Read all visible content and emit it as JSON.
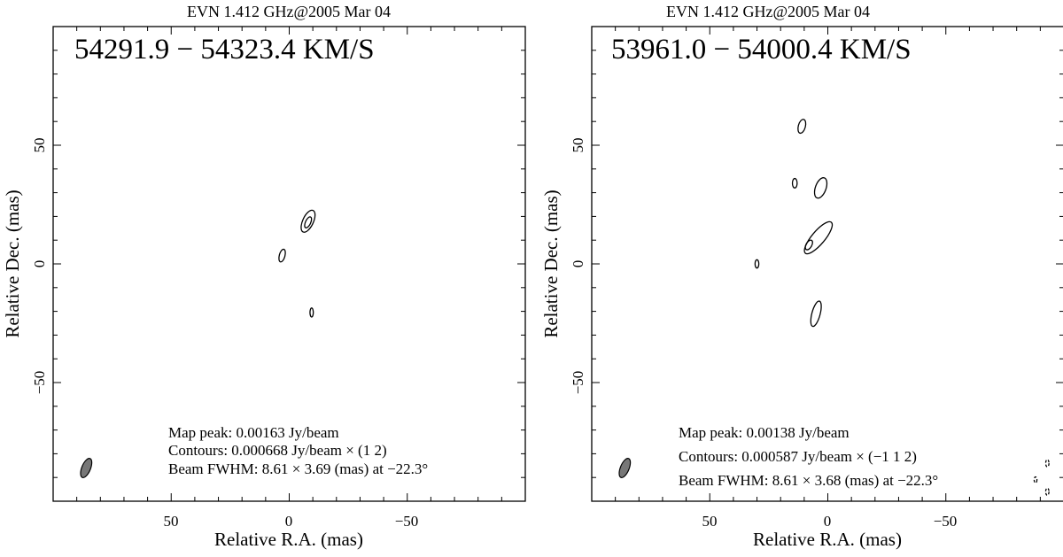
{
  "chart_data": [
    {
      "type": "contour",
      "title": "EVN 1.412 GHz@2005 Mar 04",
      "velocity_label": "54291.9 − 54323.4 KM/S",
      "xlabel": "Relative R.A. (mas)",
      "ylabel": "Relative Dec. (mas)",
      "x_ticks": [
        "50",
        "0",
        "−50"
      ],
      "y_ticks": [
        "50",
        "0",
        "−50"
      ],
      "xlim": [
        100,
        -100
      ],
      "ylim": [
        -100,
        100
      ],
      "info": {
        "peak": "Map peak: 0.00163 Jy/beam",
        "contours": "Contours: 0.000668 Jy/beam × (1 2)",
        "beam": "Beam FWHM: 8.61 × 3.69 (mas) at −22.3°"
      },
      "beam_ellipse": {
        "ra": 86,
        "dec": -86,
        "major": 8.61,
        "minor": 3.69,
        "pa": -22.3
      },
      "components": [
        {
          "ra": -8,
          "dec": 18,
          "major": 10,
          "minor": 4.5,
          "pa": -25,
          "level": 1
        },
        {
          "ra": -8,
          "dec": 17.5,
          "major": 5,
          "minor": 2.2,
          "pa": -25,
          "level": 2
        },
        {
          "ra": 3,
          "dec": 3.5,
          "major": 5.5,
          "minor": 2.4,
          "pa": -15,
          "level": 1
        },
        {
          "ra": -9.5,
          "dec": -20.5,
          "major": 3.8,
          "minor": 1.4,
          "pa": 0,
          "level": 1
        }
      ]
    },
    {
      "type": "contour",
      "title": "EVN 1.412 GHz@2005 Mar 04",
      "velocity_label": "53961.0 − 54000.4 KM/S",
      "xlabel": "Relative R.A. (mas)",
      "ylabel": "Relative Dec. (mas)",
      "x_ticks": [
        "50",
        "0",
        "−50"
      ],
      "y_ticks": [
        "50",
        "0",
        "−50"
      ],
      "xlim": [
        100,
        -100
      ],
      "ylim": [
        -100,
        100
      ],
      "info": {
        "peak": "Map peak: 0.00138 Jy/beam",
        "contours": "Contours: 0.000587 Jy/beam × (−1 1 2)",
        "beam": "Beam FWHM: 8.61 × 3.68 (mas) at −22.3°"
      },
      "beam_ellipse": {
        "ra": 86,
        "dec": -86,
        "major": 8.61,
        "minor": 3.68,
        "pa": -22.3
      },
      "components": [
        {
          "ra": 11,
          "dec": 58,
          "major": 6,
          "minor": 3,
          "pa": -15,
          "level": 1
        },
        {
          "ra": 14,
          "dec": 34,
          "major": 4,
          "minor": 2,
          "pa": 0,
          "level": 1
        },
        {
          "ra": 3,
          "dec": 32,
          "major": 9,
          "minor": 4.5,
          "pa": -20,
          "level": 1
        },
        {
          "ra": 4,
          "dec": 11,
          "major": 17,
          "minor": 5.5,
          "pa": -40,
          "level": 1
        },
        {
          "ra": 8,
          "dec": 8,
          "major": 4.5,
          "minor": 2.4,
          "pa": -30,
          "level": 2
        },
        {
          "ra": 30,
          "dec": 0,
          "major": 3.5,
          "minor": 1.6,
          "pa": 0,
          "level": 1
        },
        {
          "ra": 5,
          "dec": -21,
          "major": 11,
          "minor": 3.5,
          "pa": -15,
          "level": 1
        },
        {
          "ra": -93,
          "dec": -84,
          "major": 3,
          "minor": 1.4,
          "pa": 0,
          "level": -1
        },
        {
          "ra": -88,
          "dec": -91,
          "major": 2.5,
          "minor": 1.2,
          "pa": 0,
          "level": -1
        },
        {
          "ra": -93,
          "dec": -96,
          "major": 3,
          "minor": 1.4,
          "pa": 0,
          "level": -1
        }
      ]
    }
  ]
}
